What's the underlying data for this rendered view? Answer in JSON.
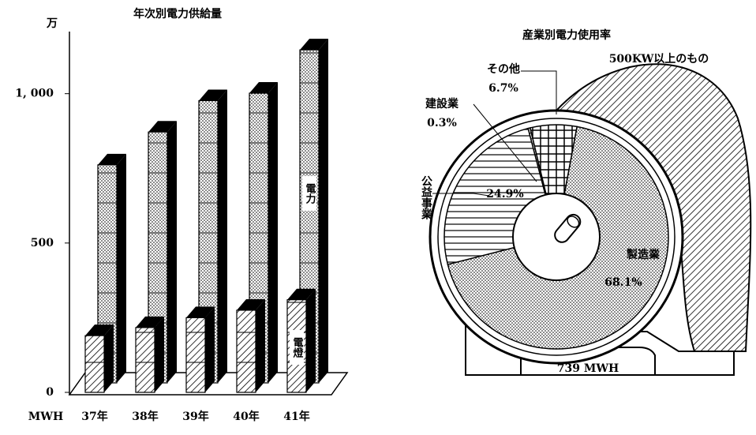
{
  "chart_data": [
    {
      "type": "bar3d",
      "title": "年次別電力供給量",
      "y_unit_top": "万",
      "y_unit_bottom": "MWH",
      "categories": [
        "37年",
        "38年",
        "39年",
        "40年",
        "41年"
      ],
      "series": [
        {
          "name": "電燈",
          "values": [
            190,
            217,
            250,
            275,
            310
          ]
        },
        {
          "name": "電力",
          "values": [
            730,
            840,
            945,
            970,
            1115
          ]
        }
      ],
      "ylim": [
        0,
        1200
      ],
      "yticks": [
        0,
        500,
        {
          "value": 1000,
          "label": "1, 000"
        }
      ]
    },
    {
      "type": "pie",
      "title": "産業別電力使用率",
      "annotations": [
        "500KW以上のもの",
        "739 MWH"
      ],
      "categories": [
        "製造業",
        "公益事業",
        "建設業",
        "その他"
      ],
      "values": [
        68.1,
        24.9,
        0.3,
        6.7
      ],
      "value_labels": [
        "68.1%",
        "24.9%",
        "0.3%",
        "6.7%"
      ]
    }
  ]
}
